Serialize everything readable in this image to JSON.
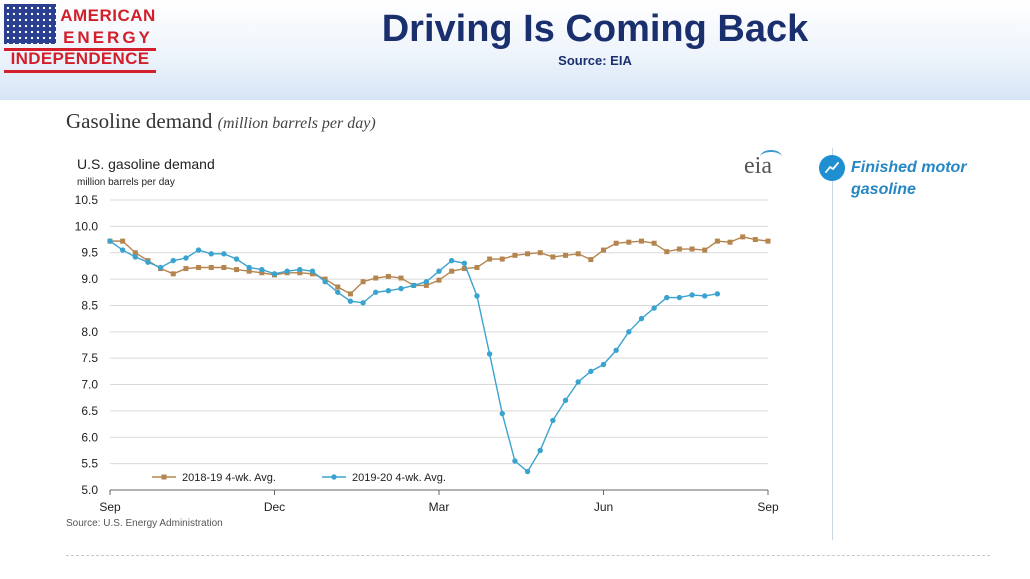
{
  "header": {
    "title": "Driving Is Coming Back",
    "source": "Source: EIA",
    "logo": {
      "line1": "AMERICAN",
      "line2": "ENERGY",
      "line3": "INDEPENDENCE"
    }
  },
  "page_heading": {
    "main": "Gasoline demand",
    "unit": "(million barrels per day)"
  },
  "sidebar": {
    "label": "Finished motor gasoline",
    "icon": "line-chart-icon"
  },
  "eia_logo": "eia",
  "colors": {
    "series_2018": "#b5854f",
    "series_2019": "#3ba3cf",
    "title": "#1a2f6e",
    "logo_red": "#d21f2b",
    "accent_blue": "#2587c4"
  },
  "chart_data": {
    "type": "line",
    "title": "U.S. gasoline demand",
    "subtitle": "million barrels per day",
    "source": "Source: U.S. Energy Administration",
    "x_range": [
      0,
      52
    ],
    "x_ticks": [
      {
        "x": 0,
        "label": "Sep"
      },
      {
        "x": 13,
        "label": "Dec"
      },
      {
        "x": 26,
        "label": "Mar"
      },
      {
        "x": 39,
        "label": "Jun"
      },
      {
        "x": 52,
        "label": "Sep"
      }
    ],
    "ylim": [
      5.0,
      10.5
    ],
    "y_ticks": [
      "5.0",
      "5.5",
      "6.0",
      "6.5",
      "7.0",
      "7.5",
      "8.0",
      "8.5",
      "9.0",
      "9.5",
      "10.0",
      "10.5"
    ],
    "grid": true,
    "legend_position": "bottom-left",
    "series": [
      {
        "name": "2018-19  4-wk. Avg.",
        "marker": "square",
        "color": "#b5854f",
        "values": [
          9.72,
          9.72,
          9.5,
          9.35,
          9.2,
          9.1,
          9.2,
          9.22,
          9.22,
          9.22,
          9.18,
          9.15,
          9.12,
          9.08,
          9.12,
          9.12,
          9.1,
          9.0,
          8.85,
          8.72,
          8.95,
          9.02,
          9.05,
          9.02,
          8.88,
          8.88,
          8.98,
          9.15,
          9.2,
          9.22,
          9.38,
          9.38,
          9.45,
          9.48,
          9.5,
          9.42,
          9.45,
          9.48,
          9.37,
          9.55,
          9.68,
          9.7,
          9.72,
          9.68,
          9.52,
          9.57,
          9.57,
          9.55,
          9.72,
          9.7,
          9.8,
          9.75,
          9.72
        ]
      },
      {
        "name": "2019-20  4-wk. Avg.",
        "marker": "circle",
        "color": "#3ba3cf",
        "values": [
          9.72,
          9.55,
          9.42,
          9.32,
          9.22,
          9.35,
          9.4,
          9.55,
          9.48,
          9.48,
          9.38,
          9.22,
          9.18,
          9.1,
          9.15,
          9.18,
          9.15,
          8.95,
          8.75,
          8.58,
          8.55,
          8.75,
          8.78,
          8.82,
          8.88,
          8.95,
          9.15,
          9.35,
          9.3,
          8.68,
          7.58,
          6.45,
          5.55,
          5.35,
          5.75,
          6.32,
          6.7,
          7.05,
          7.25,
          7.38,
          7.65,
          8.0,
          8.25,
          8.45,
          8.65,
          8.65,
          8.7,
          8.68,
          8.72
        ]
      }
    ]
  }
}
